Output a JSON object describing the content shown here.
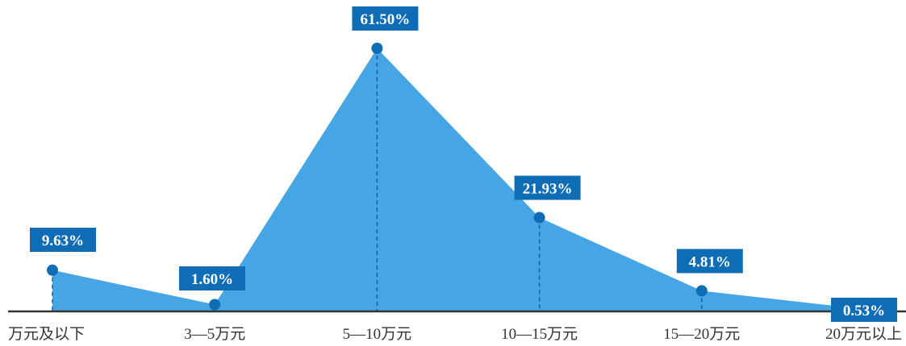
{
  "chart_data": {
    "type": "area",
    "categories": [
      "万元及以下",
      "3—5万元",
      "5—10万元",
      "10—15万元",
      "15—20万元",
      "20万元以上"
    ],
    "values": [
      9.63,
      1.6,
      61.5,
      21.93,
      4.81,
      0.53
    ],
    "data_labels": [
      "9.63%",
      "1.60%",
      "61.50%",
      "21.93%",
      "4.81%",
      "0.53%"
    ],
    "ylim": [
      0,
      65
    ],
    "grid": false,
    "legend": "none"
  },
  "colors": {
    "fill": "#45a5e5",
    "marker": "#0e6db5",
    "label_bg": "#0e6db5",
    "axis": "#333333",
    "dashed": "#1b5f99"
  }
}
